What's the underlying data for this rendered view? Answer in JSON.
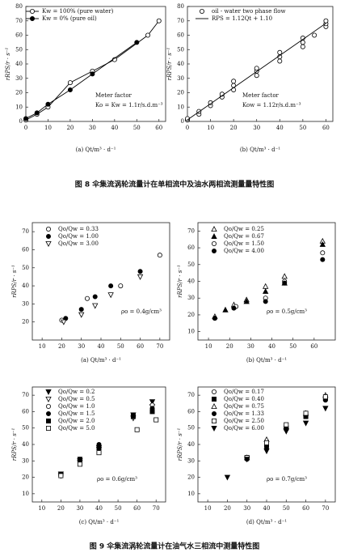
{
  "chart_data": [
    {
      "type": "line",
      "xlabel": "(a) Qt/m³ · d⁻¹",
      "ylabel": "rRPS/r · s⁻¹",
      "xlim": [
        0,
        63
      ],
      "ylim": [
        0,
        80
      ],
      "xticks": [
        0,
        10,
        20,
        30,
        40,
        50,
        60
      ],
      "yticks": [
        0,
        10,
        20,
        30,
        40,
        50,
        60,
        70,
        80
      ],
      "annotations": [
        "Meter factor",
        "Ko = Kw = 1.1r/s.d.m⁻³"
      ],
      "series": [
        {
          "name": "Kw = 100% (pure water)",
          "color": "#000000",
          "marker": "circle",
          "filled": false,
          "x": [
            0,
            5,
            10,
            20,
            30,
            40,
            55,
            60
          ],
          "values": [
            1,
            5,
            10,
            27,
            35,
            43,
            60,
            70
          ]
        },
        {
          "name": "Kw = 0% (pure oil)",
          "color": "#000000",
          "marker": "circle",
          "filled": true,
          "x": [
            0,
            5,
            10,
            20,
            30,
            50
          ],
          "values": [
            2,
            6,
            12,
            22,
            33,
            55
          ]
        }
      ]
    },
    {
      "type": "scatter",
      "xlabel": "(b) Qt/m³ · d⁻¹",
      "ylabel": "rRPS/r · s⁻¹",
      "xlim": [
        0,
        63
      ],
      "ylim": [
        0,
        80
      ],
      "xticks": [
        0,
        10,
        20,
        30,
        40,
        50,
        60
      ],
      "yticks": [
        0,
        10,
        20,
        30,
        40,
        50,
        60,
        70,
        80
      ],
      "annotations": [
        "Meter factor",
        "Kow = 1.12r/s.d.m⁻³"
      ],
      "series": [
        {
          "name": "oil - water two phase flow",
          "color": "#000000",
          "marker": "circle",
          "filled": false,
          "x": [
            0,
            0,
            5,
            5,
            10,
            10,
            15,
            15,
            20,
            20,
            20,
            30,
            30,
            30,
            40,
            40,
            40,
            50,
            50,
            50,
            55,
            60,
            60,
            60
          ],
          "values": [
            1,
            2,
            5,
            7,
            11,
            13,
            17,
            19,
            22,
            25,
            28,
            32,
            35,
            37,
            42,
            45,
            48,
            52,
            55,
            58,
            60,
            66,
            68,
            70
          ]
        },
        {
          "name": "RPS = 1.12Qt + 1.10",
          "color": "#000000",
          "marker": "none",
          "line": true,
          "x": [
            0,
            60
          ],
          "values": [
            1.1,
            68.3
          ]
        }
      ]
    },
    {
      "type": "scatter",
      "xlabel": "(a) Qt/m³ · d⁻¹",
      "ylabel": "rRPS/r · s⁻¹",
      "xlim": [
        5,
        75
      ],
      "ylim": [
        10,
        75
      ],
      "xticks": [
        10,
        20,
        30,
        40,
        50,
        60,
        70
      ],
      "yticks": [
        20,
        30,
        40,
        50,
        60,
        70
      ],
      "annotations": [
        "ρo = 0.4g/cm³"
      ],
      "series": [
        {
          "name": "Qo/Qw = 0.33",
          "color": "#000000",
          "marker": "circle",
          "filled": false,
          "x": [
            20,
            33,
            50,
            70
          ],
          "values": [
            21,
            33,
            40,
            57
          ]
        },
        {
          "name": "Qo/Qw = 1.00",
          "color": "#000000",
          "marker": "circle",
          "filled": true,
          "x": [
            22,
            30,
            37,
            45,
            60
          ],
          "values": [
            22,
            27,
            34,
            40,
            48
          ]
        },
        {
          "name": "Qo/Qw = 3.00",
          "color": "#000000",
          "marker": "triangle-down",
          "filled": false,
          "x": [
            21,
            30,
            37,
            45,
            60
          ],
          "values": [
            20,
            24,
            29,
            35,
            45
          ]
        }
      ]
    },
    {
      "type": "scatter",
      "xlabel": "(b) Qt/m³ · d⁻¹",
      "ylabel": "rRPS/r · s⁻¹",
      "xlim": [
        5,
        70
      ],
      "ylim": [
        5,
        75
      ],
      "xticks": [
        10,
        20,
        30,
        40,
        50,
        60
      ],
      "yticks": [
        10,
        20,
        30,
        40,
        50,
        60,
        70
      ],
      "annotations": [
        "ρo = 0.5g/cm³"
      ],
      "series": [
        {
          "name": "Qo/Qw = 0.25",
          "color": "#000000",
          "marker": "triangle-up",
          "filled": false,
          "x": [
            13,
            22,
            28,
            37,
            46,
            64
          ],
          "values": [
            19,
            26,
            29,
            37,
            43,
            64
          ]
        },
        {
          "name": "Qo/Qw = 0.67",
          "color": "#000000",
          "marker": "triangle-up",
          "filled": true,
          "x": [
            18,
            28,
            37,
            46,
            64
          ],
          "values": [
            23,
            28,
            34,
            39,
            62
          ]
        },
        {
          "name": "Qo/Qw = 1.50",
          "color": "#000000",
          "marker": "circle",
          "filled": false,
          "x": [
            13,
            23,
            37,
            46,
            64
          ],
          "values": [
            18,
            25,
            30,
            40,
            57
          ]
        },
        {
          "name": "Qo/Qw = 4.00",
          "color": "#000000",
          "marker": "circle",
          "filled": true,
          "x": [
            13,
            22,
            37,
            46,
            64
          ],
          "values": [
            18,
            24,
            28,
            39,
            53
          ]
        }
      ]
    },
    {
      "type": "scatter",
      "xlabel": "(c) Qt/m³ · d⁻¹",
      "ylabel": "rRPS/r · s⁻¹",
      "xlim": [
        5,
        75
      ],
      "ylim": [
        5,
        75
      ],
      "xticks": [
        10,
        20,
        30,
        40,
        50,
        60,
        70
      ],
      "yticks": [
        10,
        20,
        30,
        40,
        50,
        60,
        70
      ],
      "annotations": [
        "ρo = 0.6g/cm³"
      ],
      "series": [
        {
          "name": "Qo/Qw = 0.2",
          "color": "#000000",
          "marker": "triangle-down",
          "filled": true,
          "x": [
            20,
            30,
            40,
            58,
            68
          ],
          "values": [
            22,
            30,
            38,
            58,
            66
          ]
        },
        {
          "name": "Qo/Qw = 0.5",
          "color": "#000000",
          "marker": "triangle-down",
          "filled": false,
          "x": [
            20,
            30,
            40,
            58,
            68
          ],
          "values": [
            21,
            29,
            37,
            56,
            63
          ]
        },
        {
          "name": "Qo/Qw = 1.0",
          "color": "#000000",
          "marker": "circle",
          "filled": false,
          "x": [
            20,
            30,
            40,
            58,
            68
          ],
          "values": [
            22,
            31,
            39,
            57,
            64
          ]
        },
        {
          "name": "Qo/Qw = 1.5",
          "color": "#000000",
          "marker": "circle",
          "filled": true,
          "x": [
            20,
            30,
            40,
            58,
            68
          ],
          "values": [
            21,
            30,
            40,
            58,
            62
          ]
        },
        {
          "name": "Qo/Qw = 2.0",
          "color": "#000000",
          "marker": "square",
          "filled": true,
          "x": [
            20,
            30,
            40,
            58,
            68
          ],
          "values": [
            22,
            31,
            38,
            57,
            60
          ]
        },
        {
          "name": "Qo/Qw = 5.0",
          "color": "#000000",
          "marker": "square",
          "filled": false,
          "x": [
            20,
            30,
            40,
            60,
            70
          ],
          "values": [
            21,
            28,
            35,
            49,
            55
          ]
        }
      ]
    },
    {
      "type": "scatter",
      "xlabel": "(d) Qt/m³ · d⁻¹",
      "ylabel": "rRPS/r · s⁻¹",
      "xlim": [
        5,
        75
      ],
      "ylim": [
        5,
        75
      ],
      "xticks": [
        10,
        20,
        30,
        40,
        50,
        60,
        70
      ],
      "yticks": [
        10,
        20,
        30,
        40,
        50,
        60,
        70
      ],
      "annotations": [
        "ρo = 0.7g/cm³"
      ],
      "series": [
        {
          "name": "Qo/Qw = 0.17",
          "color": "#000000",
          "marker": "circle",
          "filled": false,
          "x": [
            30,
            40,
            50,
            60,
            70
          ],
          "values": [
            32,
            42,
            51,
            58,
            69
          ]
        },
        {
          "name": "Qo/Qw = 0.40",
          "color": "#000000",
          "marker": "square",
          "filled": true,
          "x": [
            30,
            40,
            50,
            60,
            70
          ],
          "values": [
            32,
            40,
            50,
            57,
            68
          ]
        },
        {
          "name": "Qo/Qw = 0.75",
          "color": "#000000",
          "marker": "triangle-up",
          "filled": false,
          "x": [
            30,
            40,
            50,
            60,
            70
          ],
          "values": [
            32,
            43,
            51,
            59,
            70
          ]
        },
        {
          "name": "Qo/Qw = 1.33",
          "color": "#000000",
          "marker": "circle",
          "filled": true,
          "x": [
            30,
            40,
            50,
            60,
            70
          ],
          "values": [
            31,
            38,
            50,
            57,
            67
          ]
        },
        {
          "name": "Qo/Qw = 2.50",
          "color": "#000000",
          "marker": "square",
          "filled": false,
          "x": [
            30,
            40,
            50,
            60,
            70
          ],
          "values": [
            32,
            41,
            52,
            59,
            69
          ]
        },
        {
          "name": "Qo/Qw = 6.00",
          "color": "#000000",
          "marker": "triangle-down",
          "filled": true,
          "x": [
            20,
            30,
            40,
            50,
            60,
            70
          ],
          "values": [
            20,
            31,
            36,
            48,
            53,
            62
          ]
        }
      ]
    }
  ],
  "figure8_caption": "图 8   伞集流涡轮流量计在单相流中及油水两相流测量量特性图",
  "figure9_caption": "图 9   伞集流涡轮流量计在油气水三相流中测量特性图"
}
